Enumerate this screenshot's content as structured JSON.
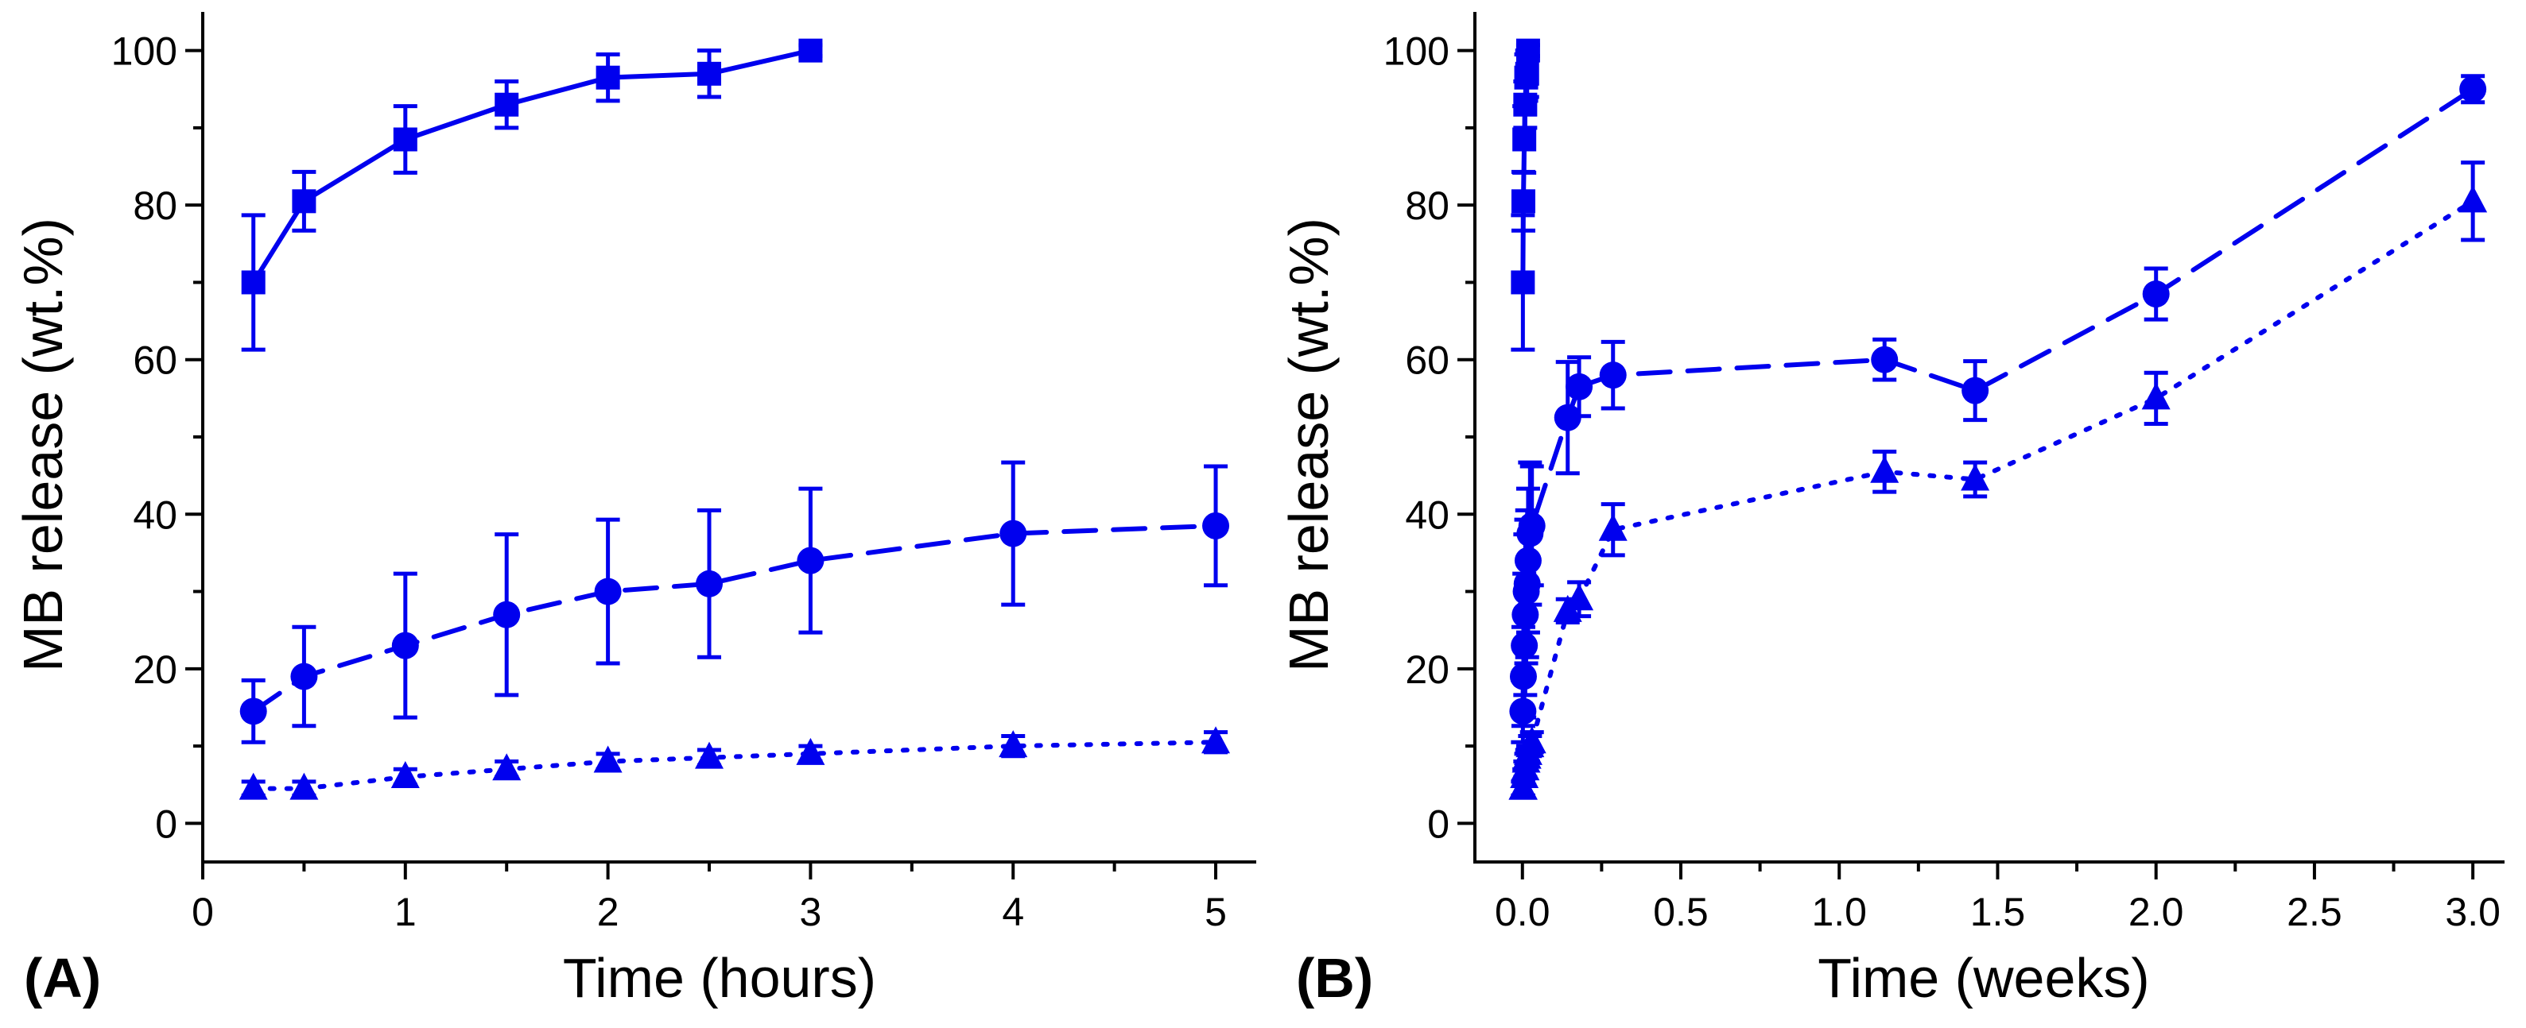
{
  "figure": {
    "color": "#0000ee",
    "panel_labels": [
      "(A)",
      "(B)"
    ]
  },
  "chart_data": [
    {
      "type": "line",
      "panel_label": "(A)",
      "xlabel": "Time (hours)",
      "ylabel": "MB release (wt.%)",
      "xlim": [
        0,
        5.2
      ],
      "ylim": [
        -5,
        105
      ],
      "xticks": [
        0,
        1,
        2,
        3,
        4,
        5
      ],
      "xtick_labels": [
        "0",
        "1",
        "2",
        "3",
        "4",
        "5"
      ],
      "yticks": [
        0,
        20,
        40,
        60,
        80,
        100
      ],
      "ytick_labels": [
        "0",
        "20",
        "40",
        "60",
        "80",
        "100"
      ],
      "series": [
        {
          "name": "square",
          "marker": "square",
          "line": "solid",
          "x": [
            0.25,
            0.5,
            1,
            1.5,
            2,
            2.5,
            3
          ],
          "y": [
            70,
            80.5,
            88.5,
            93,
            96.5,
            97,
            100
          ],
          "err": [
            8.7,
            3.8,
            4.3,
            3,
            3,
            3,
            0.7
          ]
        },
        {
          "name": "circle",
          "marker": "circle",
          "line": "dashed",
          "x": [
            0.25,
            0.5,
            1,
            1.5,
            2,
            2.5,
            3,
            4,
            5
          ],
          "y": [
            14.5,
            19,
            23,
            27,
            30,
            31,
            34,
            37.5,
            38.5
          ],
          "err": [
            4,
            6.4,
            9.3,
            10.4,
            9.3,
            9.5,
            9.3,
            9.2,
            7.7
          ]
        },
        {
          "name": "triangle",
          "marker": "triangle",
          "line": "dotted",
          "x": [
            0.25,
            0.5,
            1,
            1.5,
            2,
            2.5,
            3,
            4,
            5
          ],
          "y": [
            4.5,
            4.5,
            6,
            7,
            8,
            8.5,
            9,
            10,
            10.5
          ],
          "err": [
            0.9,
            0.9,
            1,
            1,
            1,
            1,
            1,
            1.3,
            1.3
          ]
        }
      ]
    },
    {
      "type": "line",
      "panel_label": "(B)",
      "xlabel": "Time (weeks)",
      "ylabel": "MB release (wt.%)",
      "xlim": [
        -0.15,
        3.1
      ],
      "ylim": [
        -5,
        105
      ],
      "xticks": [
        0,
        0.5,
        1,
        1.5,
        2,
        2.5,
        3
      ],
      "xtick_labels": [
        "0.0",
        "0.5",
        "1.0",
        "1.5",
        "2.0",
        "2.5",
        "3.0"
      ],
      "yticks": [
        0,
        20,
        40,
        60,
        80,
        100
      ],
      "ytick_labels": [
        "0",
        "20",
        "40",
        "60",
        "80",
        "100"
      ],
      "series": [
        {
          "name": "square",
          "marker": "square",
          "line": "solid",
          "x": [
            0.0015,
            0.003,
            0.006,
            0.009,
            0.012,
            0.015,
            0.018
          ],
          "y": [
            70,
            80.5,
            88.5,
            93,
            96.5,
            97,
            100
          ],
          "err": [
            8.7,
            3.8,
            4.3,
            3,
            3,
            3,
            0.7
          ]
        },
        {
          "name": "circle",
          "marker": "circle",
          "line": "dashed",
          "x": [
            0.0015,
            0.003,
            0.006,
            0.009,
            0.012,
            0.015,
            0.018,
            0.024,
            0.03,
            0.143,
            0.179,
            0.286,
            1.143,
            1.429,
            2,
            3
          ],
          "y": [
            14.5,
            19,
            23,
            27,
            30,
            31,
            34,
            37.5,
            38.5,
            52.5,
            56.5,
            58,
            60,
            56,
            68.5,
            95
          ],
          "err": [
            4,
            6.4,
            9.3,
            10.4,
            9.3,
            9.5,
            9.3,
            9.2,
            7.7,
            7.2,
            3.8,
            4.3,
            2.6,
            3.8,
            3.3,
            1.7
          ]
        },
        {
          "name": "triangle",
          "marker": "triangle",
          "line": "dotted",
          "x": [
            0.0015,
            0.003,
            0.006,
            0.009,
            0.012,
            0.015,
            0.018,
            0.024,
            0.03,
            0.143,
            0.179,
            0.286,
            1.143,
            1.429,
            2,
            3
          ],
          "y": [
            4.5,
            4.5,
            6,
            7,
            8,
            8.5,
            9,
            10,
            10.5,
            27.5,
            29,
            38,
            45.5,
            44.5,
            55,
            80.5
          ],
          "err": [
            0.9,
            0.9,
            1,
            1,
            1,
            1,
            1,
            1.3,
            1.3,
            1.5,
            2.2,
            3.3,
            2.6,
            2.2,
            3.3,
            5
          ]
        }
      ]
    }
  ]
}
